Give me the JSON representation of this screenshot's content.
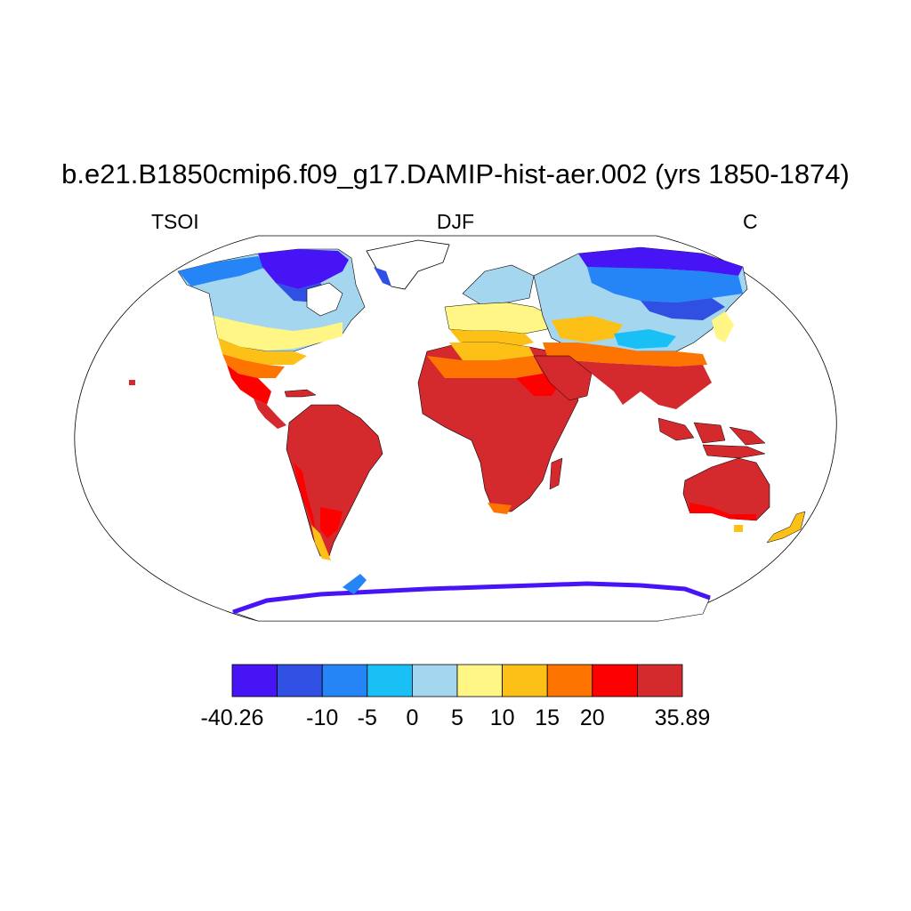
{
  "header": {
    "title": "b.e21.B1850cmip6.f09_g17.DAMIP-hist-aer.002 (yrs 1850-1874)",
    "variable": "TSOI",
    "season": "DJF",
    "units": "C"
  },
  "map": {
    "projection": "Robinson",
    "coastlines": true,
    "land_cells_colored_by_bin": true
  },
  "colorbar": {
    "colors": [
      "#4714f5",
      "#3050e3",
      "#2585f6",
      "#19c0f6",
      "#a5d6f0",
      "#fff685",
      "#fdc016",
      "#fd7400",
      "#fd0000",
      "#d42a2e"
    ],
    "boundaries": [
      -40.26,
      -15,
      -10,
      -5,
      0,
      5,
      10,
      15,
      20,
      25,
      35.89
    ],
    "tick_labels": [
      {
        "boundary_index": 0,
        "text": "-40.26"
      },
      {
        "boundary_index": 2,
        "text": "-10"
      },
      {
        "boundary_index": 3,
        "text": "-5"
      },
      {
        "boundary_index": 4,
        "text": "0"
      },
      {
        "boundary_index": 5,
        "text": "5"
      },
      {
        "boundary_index": 6,
        "text": "10"
      },
      {
        "boundary_index": 7,
        "text": "15"
      },
      {
        "boundary_index": 8,
        "text": "20"
      },
      {
        "boundary_index": 10,
        "text": "35.89"
      }
    ]
  }
}
